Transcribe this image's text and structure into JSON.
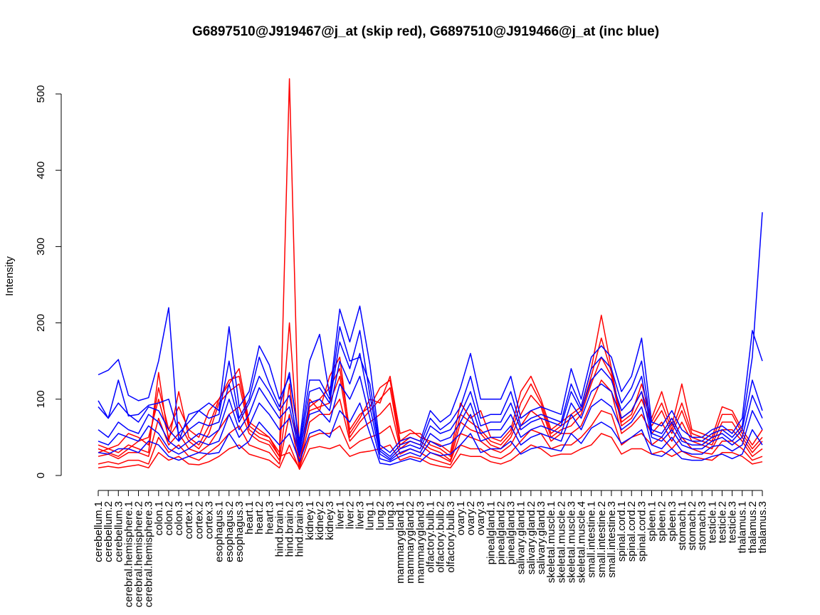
{
  "chart_data": {
    "type": "line",
    "title": "G6897510@J919467@j_at (skip red), G6897510@J919466@j_at (inc blue)",
    "xlabel": "",
    "ylabel": "Intensity",
    "ylim": [
      0,
      520
    ],
    "yticks": [
      0,
      100,
      200,
      300,
      400,
      500
    ],
    "grid": false,
    "legend": "none",
    "colors": {
      "skip": "#ff0000",
      "inc": "#0000ff"
    },
    "categories": [
      "cerebellum.1",
      "cerebellum.2",
      "cerebellum.3",
      "cerebral.hemisphere.1",
      "cerebral.hemisphere.2",
      "cerebral.hemisphere.3",
      "colon.1",
      "colon.2",
      "colon.3",
      "cortex.1",
      "cortex.2",
      "cortex.3",
      "esophagus.1",
      "esophagus.2",
      "esophagus.3",
      "heart.1",
      "heart.2",
      "heart.3",
      "hind.brain.1",
      "hind.brain.2",
      "hind.brain.3",
      "kidney.1",
      "kidney.2",
      "kidney.3",
      "liver.1",
      "liver.2",
      "liver.3",
      "lung.1",
      "lung.2",
      "lung.3",
      "mammarygland.1",
      "mammarygland.2",
      "mammarygland.3",
      "olfactory.bulb.1",
      "olfactory.bulb.2",
      "olfactory.bulb.3",
      "ovary.1",
      "ovary.2",
      "ovary.3",
      "pinealgland.1",
      "pinealgland.2",
      "pinealgland.3",
      "salivary.gland.1",
      "salivary.gland.2",
      "salivary.gland.3",
      "skeletal.muscle.1",
      "skeletal.muscle.2",
      "skeletal.muscle.3",
      "skeletal.muscle.4",
      "small.intestine.1",
      "small.intestine.2",
      "small.intestine.3",
      "spinal.cord.1",
      "spinal.cord.2",
      "spinal.cord.3",
      "spleen.1",
      "spleen.2",
      "spleen.3",
      "stomach.1",
      "stomach.2",
      "stomach.3",
      "testicle.1",
      "testicle.2",
      "testicle.3",
      "thalamus.1",
      "thalamus.2",
      "thalamus.3"
    ],
    "series": [
      {
        "group": "skip",
        "values": [
          40,
          35,
          30,
          40,
          35,
          30,
          135,
          45,
          110,
          50,
          40,
          65,
          100,
          120,
          140,
          70,
          60,
          50,
          25,
          30,
          10,
          100,
          85,
          130,
          155,
          55,
          75,
          100,
          95,
          130,
          55,
          60,
          50,
          45,
          40,
          30,
          95,
          75,
          85,
          50,
          45,
          60,
          110,
          130,
          100,
          60,
          70,
          80,
          90,
          140,
          210,
          140,
          70,
          80,
          120,
          75,
          110,
          65,
          120,
          60,
          55,
          50,
          90,
          85,
          60,
          40,
          60
        ]
      },
      {
        "group": "skip",
        "values": [
          30,
          35,
          40,
          55,
          50,
          40,
          115,
          60,
          90,
          60,
          50,
          85,
          100,
          125,
          130,
          65,
          55,
          50,
          30,
          200,
          15,
          90,
          100,
          115,
          140,
          60,
          80,
          90,
          115,
          125,
          45,
          55,
          55,
          40,
          35,
          25,
          80,
          70,
          60,
          45,
          40,
          55,
          95,
          120,
          95,
          55,
          65,
          75,
          85,
          130,
          180,
          135,
          75,
          85,
          110,
          70,
          95,
          60,
          95,
          55,
          50,
          45,
          80,
          80,
          55,
          35,
          50
        ]
      },
      {
        "group": "skip",
        "values": [
          35,
          30,
          25,
          35,
          45,
          50,
          100,
          50,
          70,
          45,
          35,
          55,
          95,
          110,
          120,
          60,
          50,
          45,
          25,
          520,
          15,
          85,
          90,
          95,
          130,
          50,
          70,
          85,
          100,
          115,
          40,
          50,
          45,
          35,
          30,
          20,
          70,
          60,
          55,
          40,
          35,
          50,
          80,
          105,
          90,
          50,
          60,
          65,
          80,
          120,
          155,
          130,
          65,
          75,
          100,
          65,
          85,
          55,
          85,
          50,
          45,
          40,
          70,
          70,
          50,
          30,
          45
        ]
      },
      {
        "group": "skip",
        "values": [
          25,
          28,
          22,
          30,
          30,
          25,
          75,
          40,
          55,
          35,
          30,
          40,
          60,
          80,
          90,
          55,
          45,
          40,
          20,
          120,
          12,
          70,
          80,
          80,
          100,
          45,
          60,
          70,
          80,
          95,
          35,
          45,
          40,
          30,
          25,
          18,
          55,
          50,
          45,
          35,
          30,
          40,
          65,
          85,
          75,
          45,
          55,
          55,
          65,
          95,
          125,
          110,
          55,
          65,
          80,
          55,
          70,
          45,
          70,
          45,
          40,
          35,
          60,
          60,
          45,
          25,
          35
        ]
      },
      {
        "group": "skip",
        "values": [
          15,
          18,
          15,
          20,
          20,
          15,
          50,
          30,
          40,
          25,
          20,
          30,
          40,
          55,
          65,
          40,
          35,
          30,
          15,
          80,
          10,
          50,
          55,
          55,
          65,
          35,
          45,
          50,
          55,
          65,
          28,
          35,
          30,
          22,
          18,
          14,
          40,
          35,
          35,
          25,
          22,
          30,
          45,
          60,
          55,
          35,
          40,
          40,
          50,
          65,
          85,
          80,
          40,
          50,
          55,
          40,
          50,
          35,
          50,
          35,
          30,
          28,
          45,
          45,
          35,
          20,
          25
        ]
      },
      {
        "group": "skip",
        "values": [
          10,
          12,
          10,
          12,
          14,
          10,
          30,
          20,
          25,
          15,
          14,
          18,
          25,
          35,
          40,
          28,
          24,
          20,
          10,
          40,
          8,
          35,
          38,
          35,
          40,
          25,
          30,
          32,
          35,
          40,
          20,
          25,
          22,
          15,
          12,
          10,
          28,
          25,
          25,
          18,
          15,
          20,
          30,
          40,
          35,
          25,
          28,
          28,
          35,
          40,
          55,
          50,
          28,
          35,
          35,
          28,
          32,
          25,
          32,
          25,
          22,
          20,
          30,
          30,
          25,
          15,
          18
        ]
      },
      {
        "group": "inc",
        "values": [
          132,
          138,
          152,
          105,
          98,
          102,
          150,
          220,
          45,
          80,
          85,
          95,
          85,
          195,
          90,
          110,
          170,
          145,
          100,
          130,
          45,
          150,
          185,
          105,
          218,
          175,
          222,
          145,
          40,
          30,
          45,
          50,
          45,
          85,
          70,
          80,
          115,
          160,
          100,
          100,
          100,
          130,
          75,
          85,
          90,
          85,
          80,
          140,
          100,
          155,
          170,
          155,
          110,
          130,
          180,
          70,
          65,
          85,
          60,
          50,
          50,
          60,
          65,
          55,
          75,
          190,
          150
        ]
      },
      {
        "group": "inc",
        "values": [
          98,
          75,
          125,
          78,
          80,
          92,
          95,
          100,
          55,
          70,
          85,
          75,
          80,
          150,
          75,
          100,
          155,
          120,
          90,
          135,
          40,
          125,
          125,
          100,
          195,
          150,
          155,
          120,
          35,
          25,
          40,
          45,
          40,
          75,
          60,
          70,
          90,
          130,
          75,
          80,
          80,
          110,
          65,
          75,
          80,
          75,
          70,
          120,
          90,
          140,
          155,
          140,
          95,
          115,
          150,
          60,
          55,
          75,
          50,
          45,
          45,
          55,
          60,
          50,
          65,
          155,
          345
        ]
      },
      {
        "group": "inc",
        "values": [
          90,
          75,
          95,
          80,
          70,
          90,
          85,
          60,
          45,
          60,
          70,
          65,
          70,
          120,
          70,
          95,
          130,
          110,
          85,
          105,
          35,
          110,
          115,
          95,
          175,
          140,
          190,
          105,
          32,
          22,
          35,
          40,
          35,
          65,
          55,
          60,
          80,
          110,
          65,
          70,
          70,
          95,
          60,
          70,
          75,
          70,
          65,
          110,
          85,
          125,
          140,
          125,
          85,
          100,
          130,
          55,
          50,
          70,
          45,
          40,
          40,
          50,
          55,
          45,
          60,
          125,
          85
        ]
      },
      {
        "group": "inc",
        "values": [
          60,
          50,
          70,
          60,
          55,
          80,
          70,
          45,
          35,
          45,
          55,
          50,
          60,
          100,
          60,
          80,
          115,
          95,
          75,
          90,
          30,
          95,
          100,
          85,
          150,
          120,
          160,
          90,
          28,
          20,
          30,
          35,
          30,
          55,
          45,
          50,
          70,
          95,
          55,
          60,
          60,
          80,
          50,
          60,
          65,
          60,
          55,
          95,
          75,
          110,
          120,
          110,
          75,
          85,
          110,
          50,
          45,
          60,
          40,
          35,
          35,
          45,
          50,
          40,
          50,
          105,
          75
        ]
      },
      {
        "group": "inc",
        "values": [
          45,
          40,
          55,
          50,
          45,
          65,
          55,
          35,
          28,
          35,
          45,
          40,
          45,
          80,
          50,
          65,
          95,
          80,
          60,
          75,
          25,
          80,
          85,
          70,
          120,
          100,
          130,
          75,
          22,
          18,
          25,
          30,
          25,
          45,
          38,
          42,
          55,
          80,
          45,
          50,
          50,
          65,
          40,
          50,
          55,
          50,
          45,
          80,
          60,
          90,
          100,
          90,
          60,
          70,
          90,
          40,
          35,
          50,
          32,
          28,
          28,
          38,
          40,
          32,
          40,
          85,
          60
        ]
      },
      {
        "group": "inc",
        "values": [
          30,
          28,
          35,
          35,
          30,
          45,
          40,
          25,
          20,
          25,
          30,
          28,
          30,
          55,
          35,
          45,
          70,
          55,
          40,
          55,
          18,
          55,
          60,
          50,
          85,
          70,
          95,
          55,
          16,
          14,
          18,
          22,
          18,
          30,
          26,
          28,
          40,
          55,
          30,
          35,
          35,
          45,
          28,
          35,
          38,
          35,
          32,
          55,
          42,
          62,
          70,
          62,
          42,
          50,
          60,
          28,
          25,
          35,
          22,
          20,
          20,
          25,
          28,
          22,
          28,
          60,
          40
        ]
      }
    ]
  }
}
